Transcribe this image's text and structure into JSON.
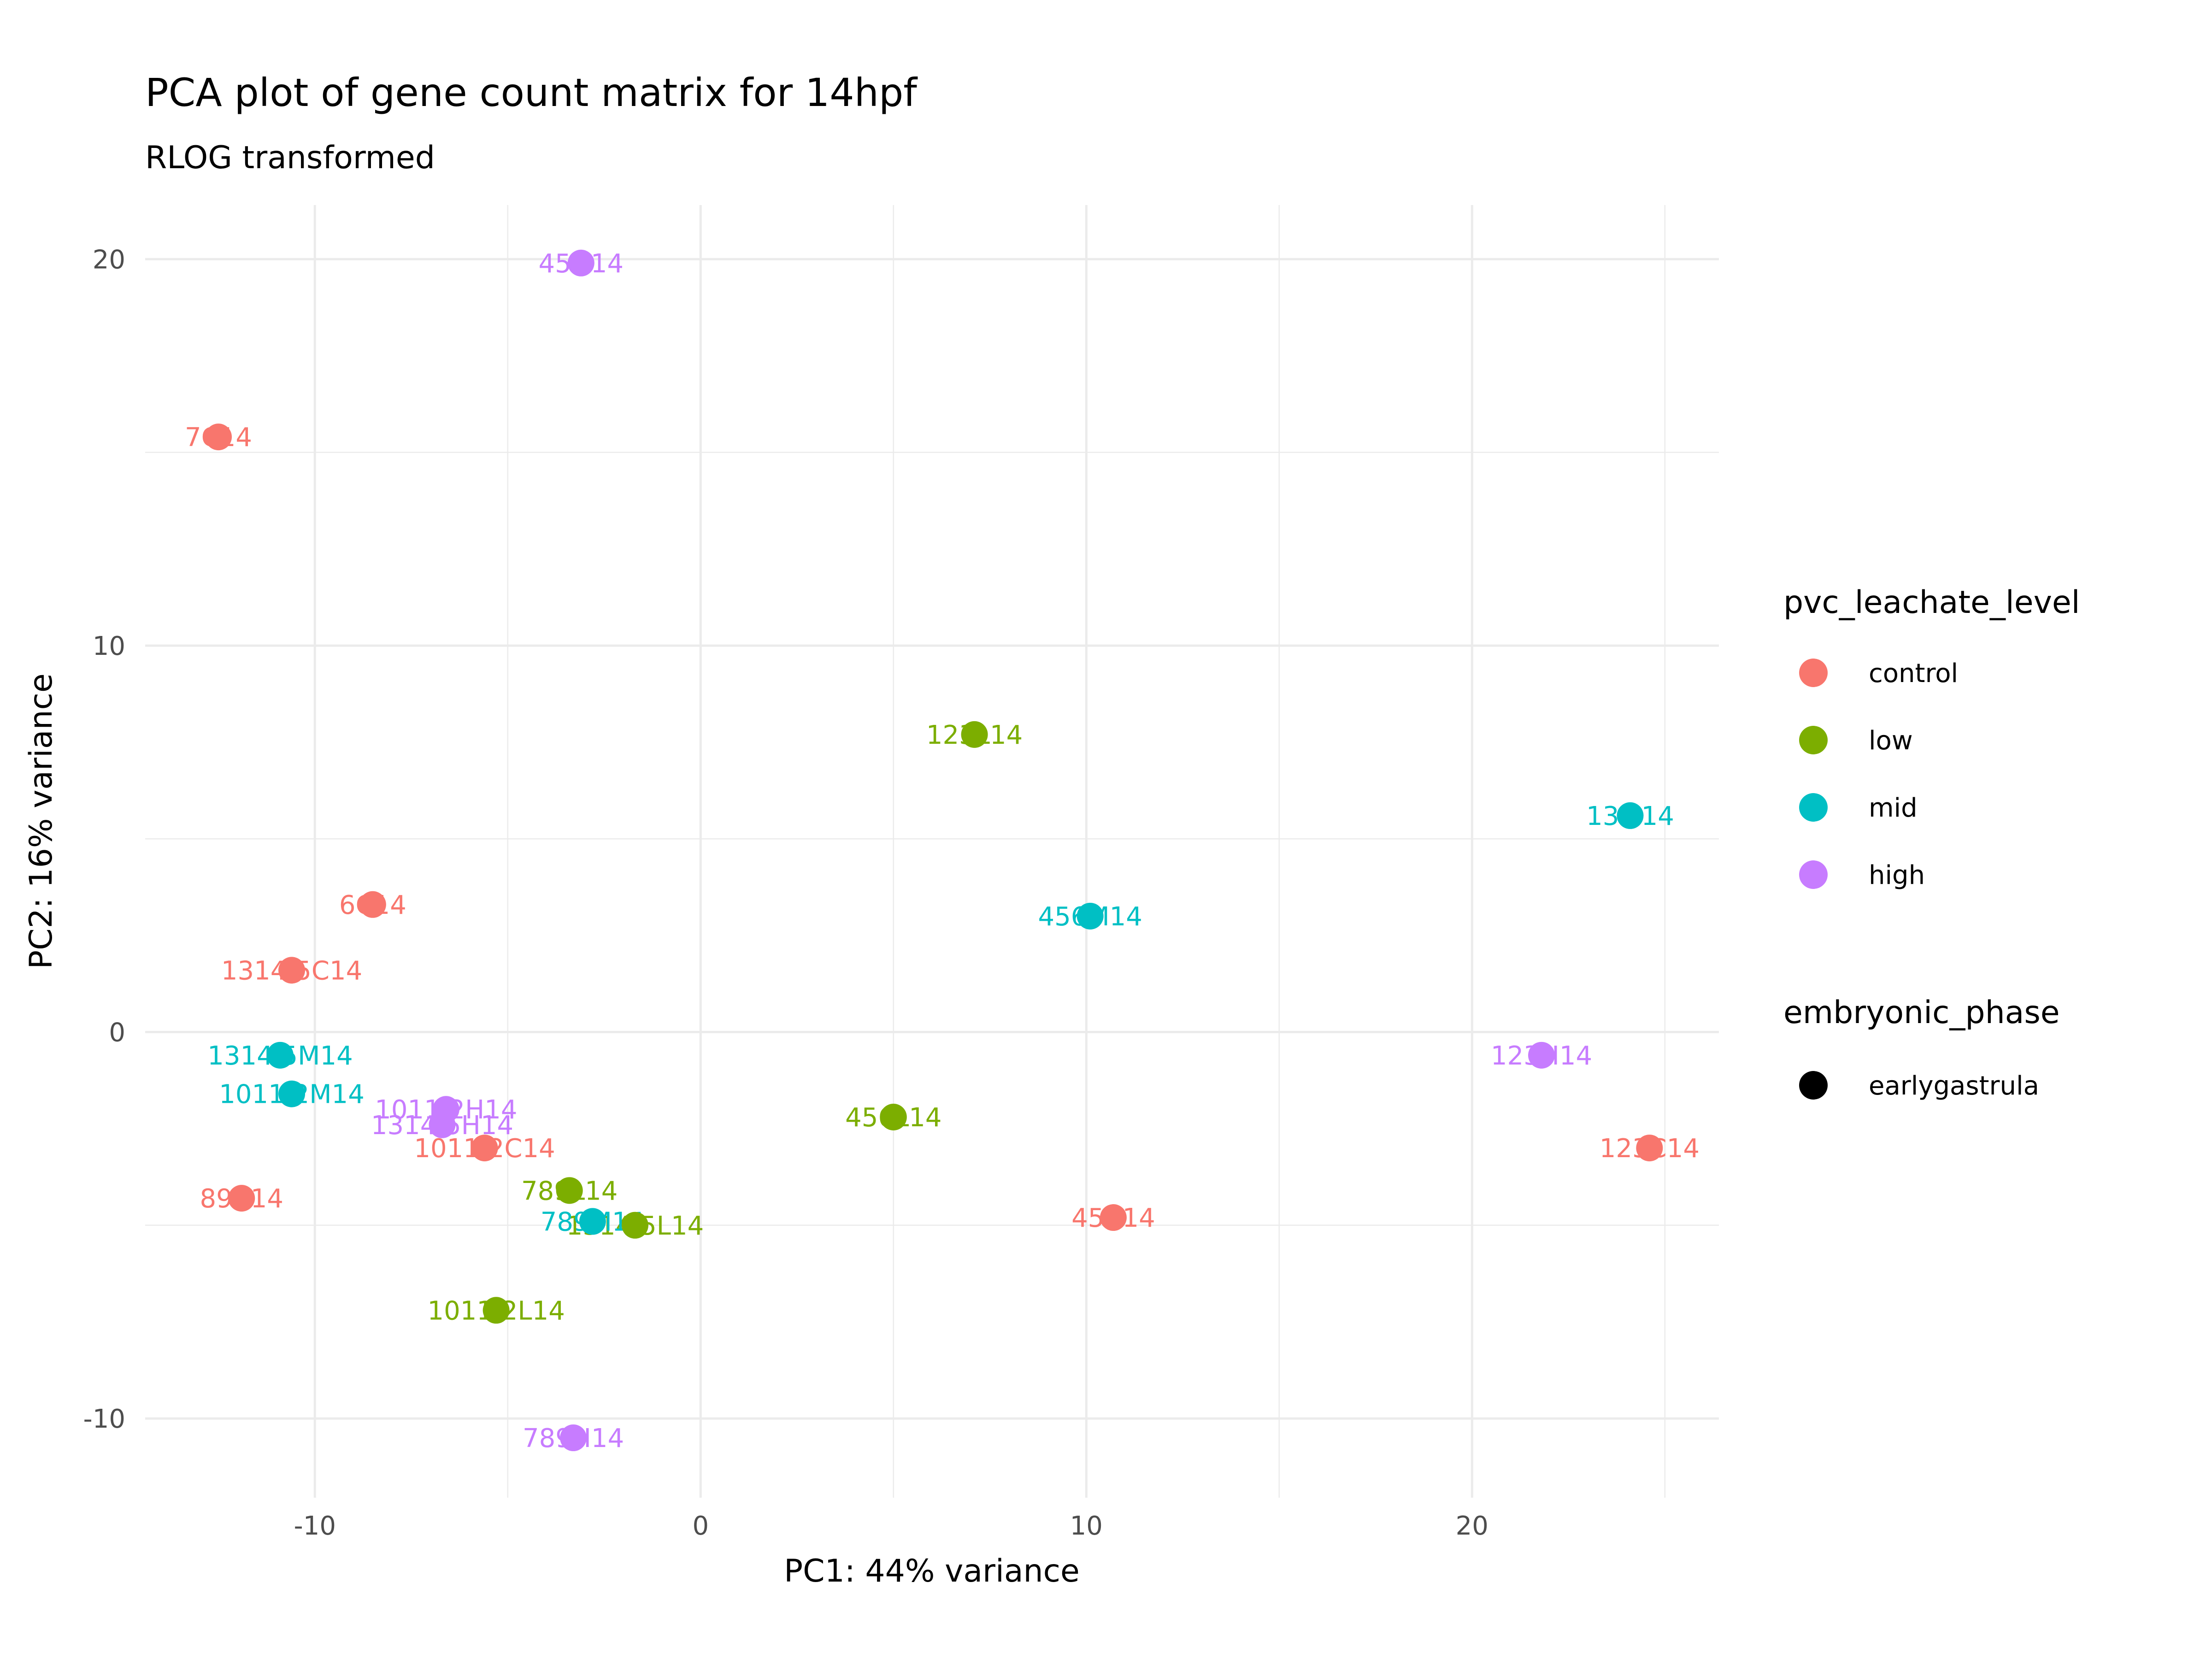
{
  "chart_data": {
    "type": "scatter",
    "title": "PCA plot of gene count matrix for 14hpf",
    "subtitle": "RLOG transformed",
    "xlabel": "PC1: 44% variance",
    "ylabel": "PC2: 16% variance",
    "xlim": [
      -14.4,
      26.4
    ],
    "ylim": [
      -12.05,
      21.4
    ],
    "x_ticks": [
      -10,
      0,
      10,
      20
    ],
    "y_ticks": [
      -10,
      0,
      10,
      20
    ],
    "x_tick_labels": [
      "-10",
      "0",
      "10",
      "20"
    ],
    "y_tick_labels": [
      "-10",
      "0",
      "10",
      "20"
    ],
    "grid": true,
    "legend_position": "right",
    "colors": {
      "control": "#F8766D",
      "low": "#7CAE00",
      "mid": "#00BFC4",
      "high": "#C77CFF"
    },
    "legends": [
      {
        "title": "pvc_leachate_level",
        "entries": [
          "control",
          "low",
          "mid",
          "high"
        ]
      },
      {
        "title": "embryonic_phase",
        "entries": [
          "earlygastrula"
        ],
        "color": "#000000"
      }
    ],
    "points": [
      {
        "label": "7C14",
        "x": -12.5,
        "y": 15.4,
        "group": "control"
      },
      {
        "label": "6C14",
        "x": -8.5,
        "y": 3.3,
        "group": "control"
      },
      {
        "label": "1314 5C14",
        "x": -10.6,
        "y": 1.6,
        "group": "control"
      },
      {
        "label": "1011 2C14",
        "x": -5.6,
        "y": -3.0,
        "group": "control"
      },
      {
        "label": "89C14",
        "x": -11.9,
        "y": -4.3,
        "group": "control"
      },
      {
        "label": "45C14",
        "x": 10.7,
        "y": -4.8,
        "group": "control"
      },
      {
        "label": "123C14",
        "x": 24.6,
        "y": -3.0,
        "group": "control"
      },
      {
        "label": "123L14",
        "x": 7.1,
        "y": 7.7,
        "group": "low"
      },
      {
        "label": "456L14",
        "x": 5.0,
        "y": -2.2,
        "group": "low"
      },
      {
        "label": "789L14",
        "x": -3.4,
        "y": -4.1,
        "group": "low"
      },
      {
        "label": "1314 5L14",
        "x": -1.7,
        "y": -5.0,
        "group": "low"
      },
      {
        "label": "1011 2L14",
        "x": -5.3,
        "y": -7.2,
        "group": "low"
      },
      {
        "label": "13M14",
        "x": 24.1,
        "y": 5.6,
        "group": "mid"
      },
      {
        "label": "456M14",
        "x": 10.1,
        "y": 3.0,
        "group": "mid"
      },
      {
        "label": "1314 5M14",
        "x": -10.9,
        "y": -0.6,
        "group": "mid"
      },
      {
        "label": "1011 2M14",
        "x": -10.6,
        "y": -1.6,
        "group": "mid"
      },
      {
        "label": "789M14",
        "x": -2.8,
        "y": -4.9,
        "group": "mid"
      },
      {
        "label": "45H14",
        "x": -3.1,
        "y": 19.9,
        "group": "high"
      },
      {
        "label": "123H14",
        "x": 21.8,
        "y": -0.6,
        "group": "high"
      },
      {
        "label": "1011 2H14",
        "x": -6.6,
        "y": -2.0,
        "group": "high"
      },
      {
        "label": "1314 5H14",
        "x": -6.7,
        "y": -2.4,
        "group": "high"
      },
      {
        "label": "789H14",
        "x": -3.3,
        "y": -10.5,
        "group": "high"
      }
    ]
  }
}
